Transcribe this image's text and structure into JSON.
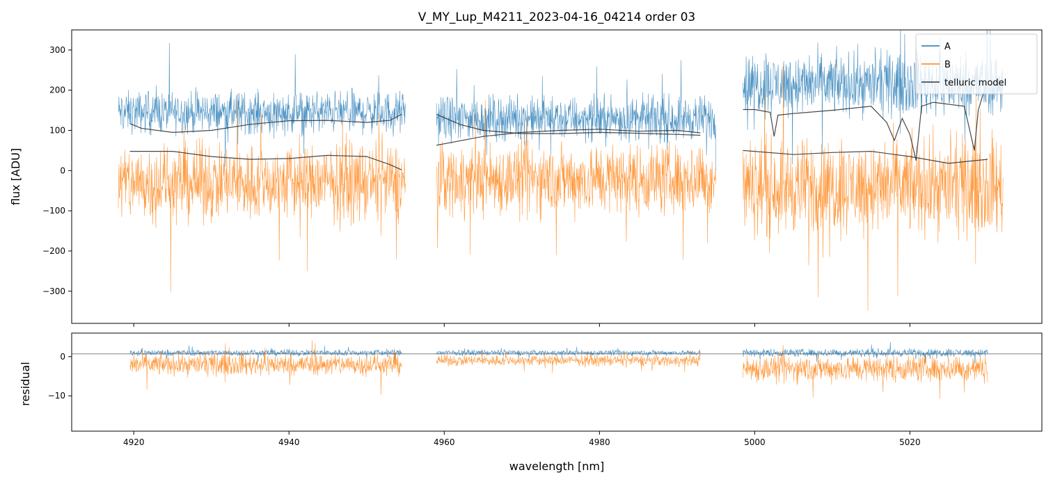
{
  "chart_data": [
    {
      "type": "line",
      "title": "V_MY_Lup_M4211_2023-04-16_04214  order 03",
      "xlabel": "",
      "ylabel": "flux [ADU]",
      "xlim": [
        4912,
        5037
      ],
      "ylim": [
        -380,
        350
      ],
      "xticks": [
        4920,
        4940,
        4960,
        4980,
        5000,
        5020
      ],
      "yticks": [
        300,
        200,
        100,
        0,
        -100,
        -200,
        -300
      ],
      "ytick_labels": [
        "300",
        "200",
        "100",
        "0",
        "−100",
        "−200",
        "−300"
      ],
      "legend": {
        "position": "top-right",
        "entries": [
          {
            "label": "A",
            "color": "#1f77b4"
          },
          {
            "label": "B",
            "color": "#ff7f0e"
          },
          {
            "label": "telluric model",
            "color": "#333333"
          }
        ]
      },
      "series": [
        {
          "name": "A",
          "color": "#1f77b4",
          "segments": [
            {
              "x": [
                4918.0,
                4955.0
              ],
              "center": 145,
              "noise": 75
            },
            {
              "x": [
                4959.0,
                4995.0
              ],
              "center": 130,
              "noise": 80
            },
            {
              "x": [
                4998.5,
                5032.0
              ],
              "center": 215,
              "noise": 110
            }
          ]
        },
        {
          "name": "B",
          "color": "#ff7f0e",
          "segments": [
            {
              "x": [
                4918.0,
                4955.0
              ],
              "center": -30,
              "noise": 140
            },
            {
              "x": [
                4959.0,
                4995.0
              ],
              "center": -20,
              "noise": 130
            },
            {
              "x": [
                4998.5,
                5032.0
              ],
              "center": -40,
              "noise": 170
            }
          ]
        },
        {
          "name": "telluric model (A)",
          "color": "#333333",
          "segments": [
            {
              "x": [
                4919.5,
                4921,
                4925,
                4930,
                4935,
                4940,
                4945,
                4950,
                4953,
                4954.5
              ],
              "y": [
                117,
                105,
                95,
                100,
                115,
                124,
                125,
                120,
                125,
                140
              ]
            },
            {
              "x": [
                4959,
                4962,
                4965,
                4970,
                4975,
                4980,
                4985,
                4990,
                4993
              ],
              "y": [
                140,
                115,
                100,
                92,
                92,
                95,
                93,
                90,
                88
              ]
            },
            {
              "x": [
                4998.5,
                5000,
                5002,
                5002.5,
                5003,
                5005,
                5010,
                5015,
                5017,
                5018,
                5019,
                5020,
                5020.8,
                5021.5,
                5023,
                5027,
                5028.3,
                5028.8,
                5029.5
              ],
              "y": [
                152,
                152,
                145,
                85,
                138,
                142,
                150,
                160,
                120,
                75,
                130,
                90,
                25,
                160,
                170,
                160,
                50,
                150,
                195
              ]
            }
          ]
        },
        {
          "name": "telluric model (B)",
          "color": "#333333",
          "segments": [
            {
              "x": [
                4919.5,
                4925,
                4930,
                4935,
                4940,
                4945,
                4950,
                4953,
                4954.5
              ],
              "y": [
                48,
                48,
                35,
                28,
                30,
                38,
                35,
                15,
                2
              ]
            },
            {
              "x": [
                4959,
                4965,
                4970,
                4975,
                4980,
                4985,
                4990,
                4993
              ],
              "y": [
                63,
                85,
                95,
                100,
                103,
                98,
                100,
                94
              ]
            },
            {
              "x": [
                4998.5,
                5005,
                5010,
                5015,
                5020,
                5025,
                5030
              ],
              "y": [
                50,
                40,
                45,
                48,
                35,
                18,
                28
              ]
            }
          ]
        }
      ]
    },
    {
      "type": "line",
      "title": "",
      "xlabel": "wavelength [nm]",
      "ylabel": "residual",
      "xlim": [
        4912,
        5037
      ],
      "ylim": [
        -19,
        6
      ],
      "xticks": [
        4920,
        4940,
        4960,
        4980,
        5000,
        5020
      ],
      "xtick_labels": [
        "4920",
        "4940",
        "4960",
        "4980",
        "5000",
        "5020"
      ],
      "yticks": [
        0,
        -10
      ],
      "ytick_labels": [
        "0",
        "−10"
      ],
      "hline": 0.7,
      "series": [
        {
          "name": "A",
          "color": "#1f77b4",
          "segments": [
            {
              "x": [
                4919.5,
                4954.5
              ],
              "center": 1,
              "noise": 1.2
            },
            {
              "x": [
                4959,
                4993
              ],
              "center": 1,
              "noise": 1.0
            },
            {
              "x": [
                4998.5,
                5030
              ],
              "center": 1,
              "noise": 1.5
            }
          ]
        },
        {
          "name": "B",
          "color": "#ff7f0e",
          "segments": [
            {
              "x": [
                4919.5,
                4954.5
              ],
              "center": -2,
              "noise": 4
            },
            {
              "x": [
                4959,
                4993
              ],
              "center": -1,
              "noise": 2
            },
            {
              "x": [
                4998.5,
                5030
              ],
              "center": -3,
              "noise": 5
            }
          ]
        }
      ]
    }
  ]
}
